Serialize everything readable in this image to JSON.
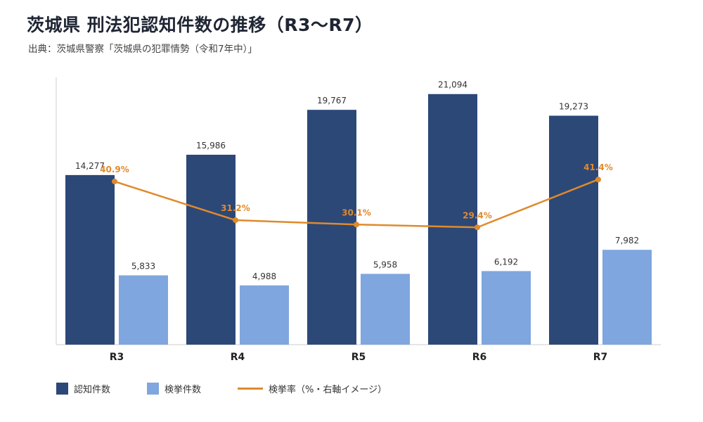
{
  "header": {
    "title": "茨城県 刑法犯認知件数の推移（R3〜R7）",
    "subtitle": "出典：茨城県警察「茨城県の犯罪情勢（令和7年中）」"
  },
  "colors": {
    "recognized": "#2c4877",
    "arrests": "#7fa6de",
    "rate": "#e08a2c",
    "axis": "#cccccc"
  },
  "legend": [
    {
      "name": "認知件数",
      "kind": "bar",
      "color": "#2c4877"
    },
    {
      "name": "検挙件数",
      "kind": "bar",
      "color": "#7fa6de"
    },
    {
      "name": "検挙率（%・右軸イメージ）",
      "kind": "line",
      "color": "#e08a2c"
    }
  ],
  "chart_data": {
    "type": "bar",
    "categories": [
      "R3",
      "R4",
      "R5",
      "R6",
      "R7"
    ],
    "series": [
      {
        "name": "認知件数",
        "type": "bar",
        "values": [
          14277,
          15986,
          19767,
          21094,
          19273
        ],
        "labels": [
          "14,277",
          "15,986",
          "19,767",
          "21,094",
          "19,273"
        ]
      },
      {
        "name": "検挙件数",
        "type": "bar",
        "values": [
          5833,
          4988,
          5958,
          6192,
          7982
        ],
        "labels": [
          "5,833",
          "4,988",
          "5,958",
          "6,192",
          "7,982"
        ]
      },
      {
        "name": "検挙率（%・右軸イメージ）",
        "type": "line",
        "axis": "right",
        "values": [
          40.9,
          31.2,
          30.1,
          29.4,
          41.4
        ],
        "labels": [
          "40.9%",
          "31.2%",
          "30.1%",
          "29.4%",
          "41.4%"
        ]
      }
    ],
    "ylim": [
      0,
      22500
    ],
    "y2lim": [
      0,
      67
    ],
    "grid": false,
    "legend_position": "bottom-left"
  }
}
